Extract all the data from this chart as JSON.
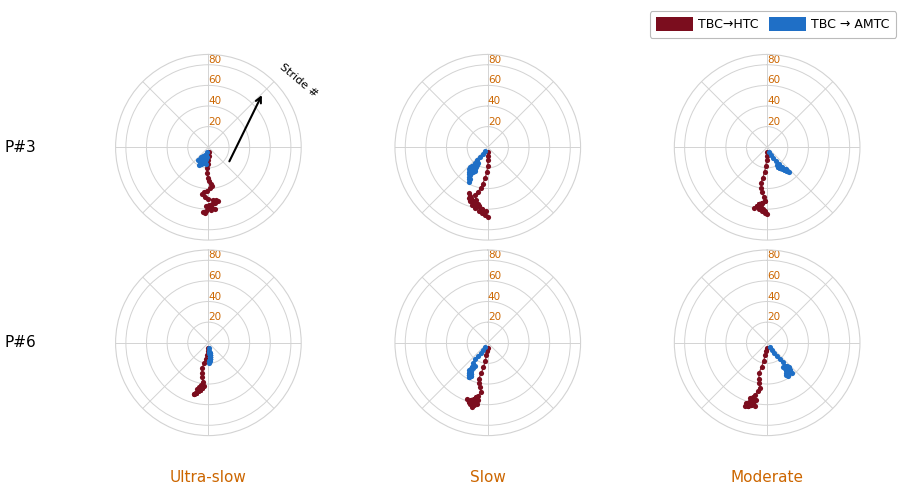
{
  "dark_red": "#7B0D1E",
  "blue": "#1F6FC6",
  "r_ticks": [
    20,
    40,
    60,
    80
  ],
  "r_max": 90,
  "legend_labels": [
    "TBC→HTC",
    "TBC → AMTC"
  ],
  "row_labels": [
    "P#3",
    "P#6"
  ],
  "col_labels": [
    "Ultra-slow",
    "Slow",
    "Moderate"
  ],
  "stride_arrow_label": "Stride #",
  "label_color": "#CC6600",
  "tick_color": "#CC6600",
  "plots": {
    "p3_ultraslow": {
      "red_angles": [
        175,
        178,
        180,
        182,
        185,
        183,
        181,
        179,
        176,
        174,
        178,
        182,
        185,
        188,
        184,
        180,
        175,
        172,
        170,
        173,
        176,
        179,
        182,
        180,
        177,
        174,
        178,
        182,
        185,
        183
      ],
      "red_radii": [
        5,
        8,
        12,
        16,
        20,
        25,
        30,
        33,
        36,
        38,
        40,
        42,
        44,
        46,
        48,
        50,
        51,
        52,
        53,
        54,
        55,
        56,
        57,
        58,
        59,
        60,
        61,
        62,
        63,
        64
      ],
      "blue_angles": [
        200,
        205,
        210,
        215,
        218,
        220,
        215,
        210,
        205,
        200,
        195,
        198,
        202,
        205,
        208,
        200,
        195,
        190,
        188,
        192,
        196,
        200,
        204,
        208,
        205,
        202,
        198,
        195,
        192,
        190
      ],
      "blue_radii": [
        5,
        8,
        10,
        12,
        14,
        16,
        14,
        12,
        10,
        8,
        10,
        12,
        14,
        16,
        18,
        16,
        14,
        12,
        10,
        12,
        14,
        16,
        18,
        20,
        18,
        16,
        14,
        12,
        14,
        16
      ]
    },
    "p3_slow": {
      "red_angles": [
        175,
        177,
        178,
        180,
        182,
        185,
        188,
        190,
        192,
        195,
        193,
        190,
        188,
        185,
        182,
        185,
        188,
        192,
        195,
        198,
        200,
        202,
        200,
        198,
        195,
        192,
        188,
        185,
        182,
        180
      ],
      "red_radii": [
        5,
        8,
        12,
        18,
        24,
        30,
        36,
        40,
        44,
        48,
        52,
        56,
        58,
        60,
        62,
        60,
        58,
        56,
        54,
        52,
        50,
        48,
        52,
        55,
        58,
        60,
        62,
        64,
        66,
        68
      ],
      "blue_angles": [
        215,
        218,
        220,
        222,
        220,
        218,
        215,
        212,
        210,
        208,
        210,
        212,
        215,
        218,
        220,
        222,
        220,
        218,
        215,
        212,
        210,
        208,
        210,
        212,
        215,
        218,
        220,
        215,
        212,
        210
      ],
      "blue_radii": [
        5,
        8,
        12,
        16,
        20,
        24,
        28,
        32,
        35,
        38,
        36,
        34,
        32,
        30,
        28,
        26,
        24,
        22,
        20,
        22,
        24,
        26,
        28,
        30,
        28,
        26,
        24,
        22,
        20,
        18
      ]
    },
    "p3_moderate": {
      "red_angles": [
        178,
        180,
        182,
        184,
        186,
        188,
        190,
        188,
        186,
        184,
        182,
        185,
        188,
        190,
        192,
        190,
        188,
        185,
        182,
        185,
        188,
        190,
        188,
        185,
        182,
        180,
        182,
        184,
        186,
        188
      ],
      "red_radii": [
        5,
        8,
        12,
        18,
        24,
        30,
        35,
        40,
        44,
        48,
        52,
        54,
        56,
        58,
        60,
        58,
        56,
        54,
        52,
        54,
        56,
        58,
        60,
        62,
        64,
        65,
        62,
        60,
        58,
        56
      ],
      "blue_angles": [
        155,
        152,
        150,
        148,
        145,
        142,
        140,
        138,
        140,
        142,
        145,
        148,
        150,
        148,
        145,
        142,
        140,
        142,
        145,
        148,
        150,
        152,
        150,
        148,
        145,
        142,
        140,
        142,
        145,
        148
      ],
      "blue_radii": [
        5,
        8,
        12,
        16,
        20,
        24,
        28,
        32,
        30,
        28,
        26,
        24,
        22,
        24,
        26,
        28,
        30,
        28,
        26,
        24,
        22,
        20,
        22,
        24,
        26,
        28,
        30,
        28,
        26,
        24
      ]
    },
    "p6_ultraslow": {
      "red_angles": [
        182,
        185,
        188,
        190,
        192,
        194,
        192,
        190,
        188,
        186,
        188,
        190,
        192,
        194,
        196,
        194,
        192,
        190,
        188,
        190,
        192,
        194,
        196,
        194,
        192,
        190,
        188,
        190,
        192,
        194
      ],
      "red_radii": [
        5,
        8,
        12,
        16,
        20,
        25,
        30,
        34,
        38,
        42,
        44,
        46,
        48,
        50,
        52,
        50,
        48,
        46,
        44,
        46,
        48,
        50,
        52,
        50,
        48,
        46,
        44,
        42,
        44,
        46
      ],
      "blue_angles": [
        178,
        176,
        175,
        174,
        175,
        176,
        178,
        179,
        178,
        176,
        175,
        174,
        173,
        174,
        175,
        176,
        175,
        174,
        173,
        174,
        175,
        176,
        175,
        174,
        173,
        172,
        173,
        174,
        175,
        176
      ],
      "blue_radii": [
        5,
        8,
        10,
        12,
        14,
        16,
        18,
        20,
        18,
        16,
        14,
        12,
        10,
        12,
        14,
        16,
        14,
        12,
        10,
        12,
        14,
        16,
        18,
        16,
        14,
        12,
        10,
        12,
        14,
        16
      ]
    },
    "p6_slow": {
      "red_angles": [
        182,
        184,
        186,
        188,
        190,
        192,
        194,
        192,
        190,
        188,
        190,
        192,
        194,
        196,
        194,
        192,
        190,
        192,
        194,
        196,
        198,
        196,
        194,
        192,
        190,
        192,
        194,
        196,
        198,
        200
      ],
      "red_radii": [
        5,
        8,
        12,
        18,
        24,
        30,
        36,
        40,
        44,
        48,
        52,
        54,
        56,
        58,
        60,
        58,
        56,
        54,
        56,
        58,
        60,
        58,
        56,
        58,
        60,
        62,
        64,
        62,
        60,
        58
      ],
      "blue_angles": [
        210,
        212,
        214,
        216,
        218,
        216,
        214,
        212,
        210,
        208,
        210,
        212,
        214,
        212,
        210,
        208,
        206,
        208,
        210,
        212,
        214,
        212,
        210,
        208,
        206,
        208,
        210,
        212,
        210,
        208
      ],
      "blue_radii": [
        5,
        8,
        12,
        16,
        20,
        24,
        28,
        32,
        36,
        38,
        36,
        34,
        32,
        34,
        36,
        38,
        36,
        34,
        32,
        30,
        28,
        30,
        32,
        34,
        36,
        34,
        32,
        30,
        28,
        26
      ]
    },
    "p6_moderate": {
      "red_angles": [
        185,
        187,
        189,
        191,
        193,
        195,
        193,
        191,
        189,
        191,
        193,
        195,
        197,
        195,
        193,
        191,
        193,
        195,
        197,
        199,
        197,
        195,
        193,
        195,
        197,
        199,
        197,
        195,
        193,
        191
      ],
      "red_radii": [
        5,
        8,
        12,
        18,
        24,
        30,
        36,
        40,
        44,
        48,
        52,
        54,
        56,
        58,
        60,
        62,
        60,
        58,
        60,
        62,
        64,
        62,
        60,
        62,
        64,
        65,
        63,
        61,
        59,
        57
      ],
      "blue_angles": [
        150,
        148,
        146,
        144,
        142,
        140,
        142,
        144,
        146,
        148,
        150,
        148,
        146,
        144,
        142,
        140,
        142,
        144,
        146,
        144,
        142,
        140,
        138,
        140,
        142,
        144,
        146,
        144,
        142,
        140
      ],
      "blue_radii": [
        5,
        8,
        12,
        16,
        20,
        24,
        28,
        32,
        36,
        38,
        36,
        34,
        32,
        34,
        36,
        38,
        36,
        34,
        32,
        30,
        28,
        30,
        32,
        34,
        32,
        30,
        28,
        30,
        32,
        34
      ]
    }
  }
}
